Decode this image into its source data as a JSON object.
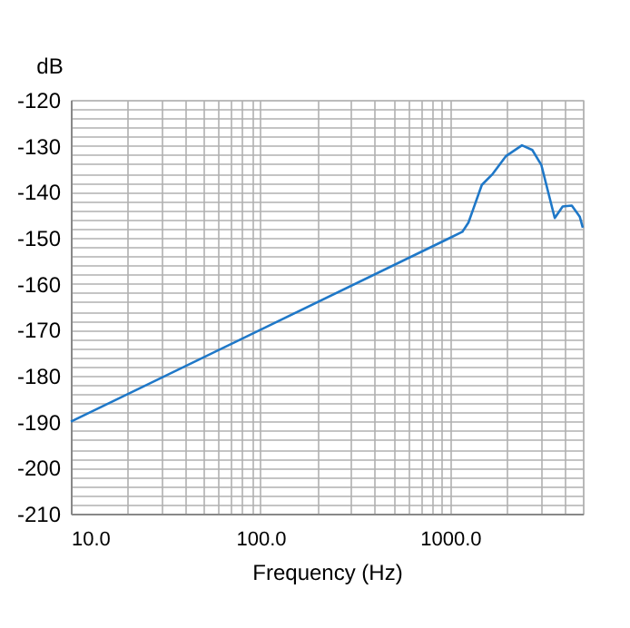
{
  "chart_data": {
    "type": "line",
    "xlabel": "Frequency (Hz)",
    "ylabel": "dB",
    "log": "x",
    "grid": true,
    "marker": "none",
    "line_style": "solid",
    "x": [
      10,
      100,
      1000,
      1159,
      1248,
      1324,
      1468,
      1676,
      1972,
      2389,
      2709,
      3025,
      3258,
      3558,
      3917,
      4375,
      4817,
      5000
    ],
    "series": [
      {
        "color": "#1f78c8",
        "values": [
          -190,
          -170,
          -150,
          -148.7,
          -146.7,
          -143.7,
          -138.5,
          -136.1,
          -132.2,
          -129.9,
          -130.9,
          -134.2,
          -139.5,
          -145.7,
          -143.2,
          -143,
          -145.4,
          -147.8
        ]
      }
    ],
    "xlim": [
      10,
      5000
    ],
    "ylim": [
      -210,
      -120
    ],
    "xticks": [
      {
        "value": 10,
        "label": "10.0"
      },
      {
        "value": 20,
        "label": null
      },
      {
        "value": 30,
        "label": null
      },
      {
        "value": 40,
        "label": null
      },
      {
        "value": 50,
        "label": null
      },
      {
        "value": 60,
        "label": null
      },
      {
        "value": 70,
        "label": null
      },
      {
        "value": 80,
        "label": null
      },
      {
        "value": 90,
        "label": null
      },
      {
        "value": 100,
        "label": "100.0"
      },
      {
        "value": 200,
        "label": null
      },
      {
        "value": 300,
        "label": null
      },
      {
        "value": 400,
        "label": null
      },
      {
        "value": 500,
        "label": null
      },
      {
        "value": 600,
        "label": null
      },
      {
        "value": 700,
        "label": null
      },
      {
        "value": 800,
        "label": null
      },
      {
        "value": 900,
        "label": null
      },
      {
        "value": 1000,
        "label": "1000.0"
      },
      {
        "value": 2000,
        "label": null
      },
      {
        "value": 3000,
        "label": null
      },
      {
        "value": 4000,
        "label": null
      },
      {
        "value": 5000,
        "label": null
      }
    ],
    "yticks": [
      -210,
      {
        "value": -208,
        "label": null
      },
      {
        "value": -206,
        "label": null
      },
      {
        "value": -204,
        "label": null
      },
      {
        "value": -202,
        "label": null
      },
      -200,
      {
        "value": -198,
        "label": null
      },
      {
        "value": -196,
        "label": null
      },
      {
        "value": -194,
        "label": null
      },
      {
        "value": -192,
        "label": null
      },
      -190,
      {
        "value": -188,
        "label": null
      },
      {
        "value": -186,
        "label": null
      },
      {
        "value": -184,
        "label": null
      },
      {
        "value": -182,
        "label": null
      },
      -180,
      {
        "value": -178,
        "label": null
      },
      {
        "value": -176,
        "label": null
      },
      {
        "value": -174,
        "label": null
      },
      {
        "value": -172,
        "label": null
      },
      -170,
      {
        "value": -168,
        "label": null
      },
      {
        "value": -166,
        "label": null
      },
      {
        "value": -164,
        "label": null
      },
      {
        "value": -162,
        "label": null
      },
      -160,
      {
        "value": -158,
        "label": null
      },
      {
        "value": -156,
        "label": null
      },
      {
        "value": -154,
        "label": null
      },
      {
        "value": -152,
        "label": null
      },
      -150,
      {
        "value": -148,
        "label": null
      },
      {
        "value": -146,
        "label": null
      },
      {
        "value": -144,
        "label": null
      },
      {
        "value": -142,
        "label": null
      },
      -140,
      {
        "value": -138,
        "label": null
      },
      {
        "value": -136,
        "label": null
      },
      {
        "value": -134,
        "label": null
      },
      {
        "value": -132,
        "label": null
      },
      -130,
      {
        "value": -128,
        "label": null
      },
      {
        "value": -126,
        "label": null
      },
      {
        "value": -124,
        "label": null
      },
      {
        "value": -122,
        "label": null
      },
      -120
    ]
  }
}
